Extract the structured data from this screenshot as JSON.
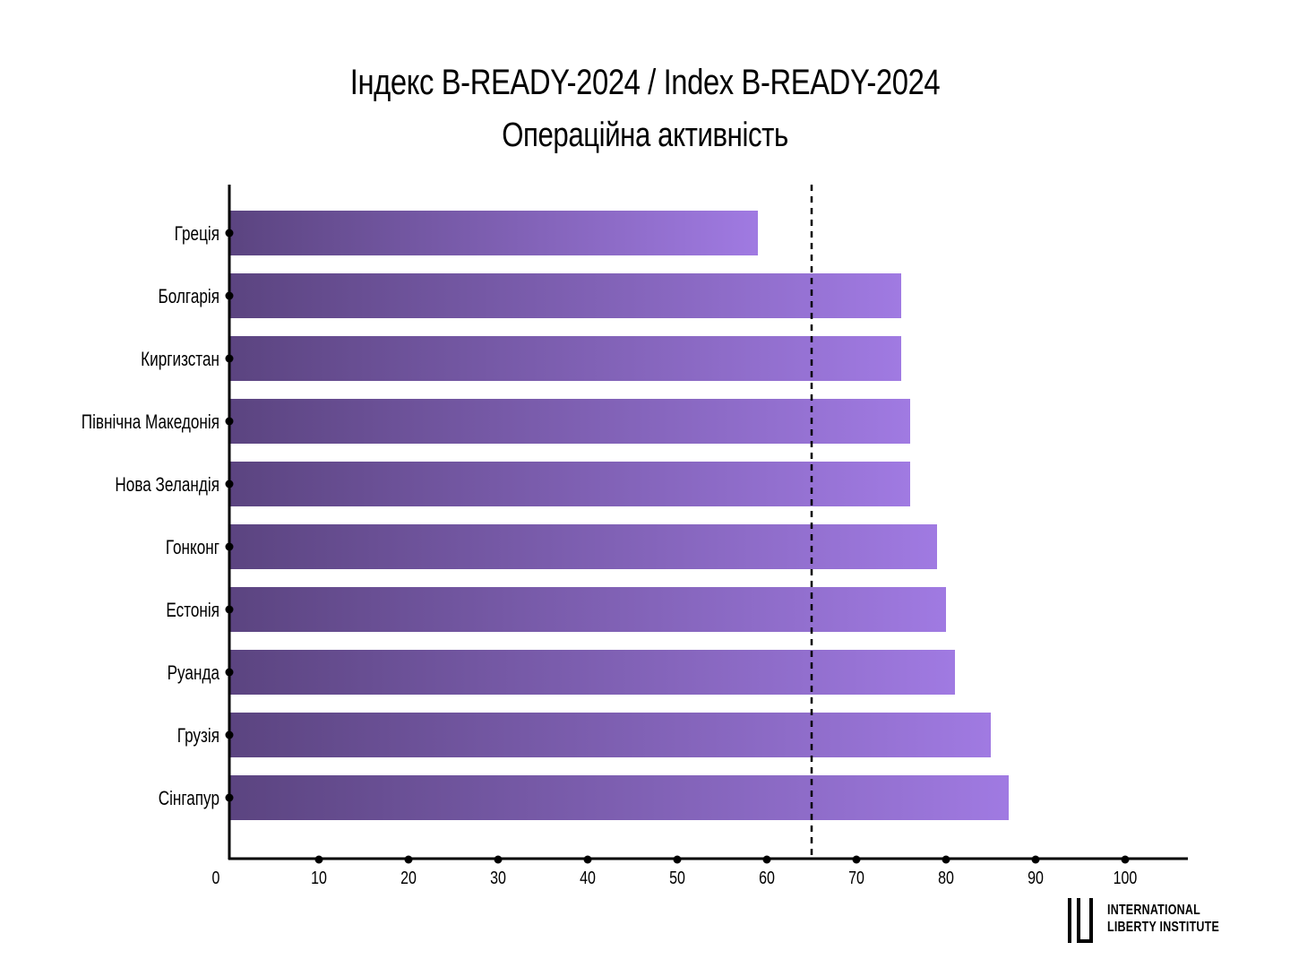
{
  "chart_data": {
    "type": "bar",
    "orientation": "horizontal",
    "title": "Індекс B-READY-2024 / Index B-READY-2024",
    "subtitle": "Операційна активність",
    "categories": [
      "Греція",
      "Болгарія",
      "Киргизстан",
      "Північна Македонія",
      "Нова Зеландія",
      "Гонконг",
      "Естонія",
      "Руанда",
      "Грузія",
      "Сінгапур"
    ],
    "values": [
      59,
      75,
      75,
      76,
      76,
      79,
      80,
      81,
      85,
      87
    ],
    "xlim": [
      0,
      100
    ],
    "xticks": [
      "0",
      "10",
      "20",
      "30",
      "40",
      "50",
      "60",
      "70",
      "80",
      "90",
      "100"
    ],
    "reference_line": 65,
    "grid": false,
    "bar_gradient": [
      "#5b4480",
      "#a07ae2"
    ]
  },
  "logo": {
    "line1": "INTERNATIONAL",
    "line2": "LIBERTY INSTITUTE"
  }
}
